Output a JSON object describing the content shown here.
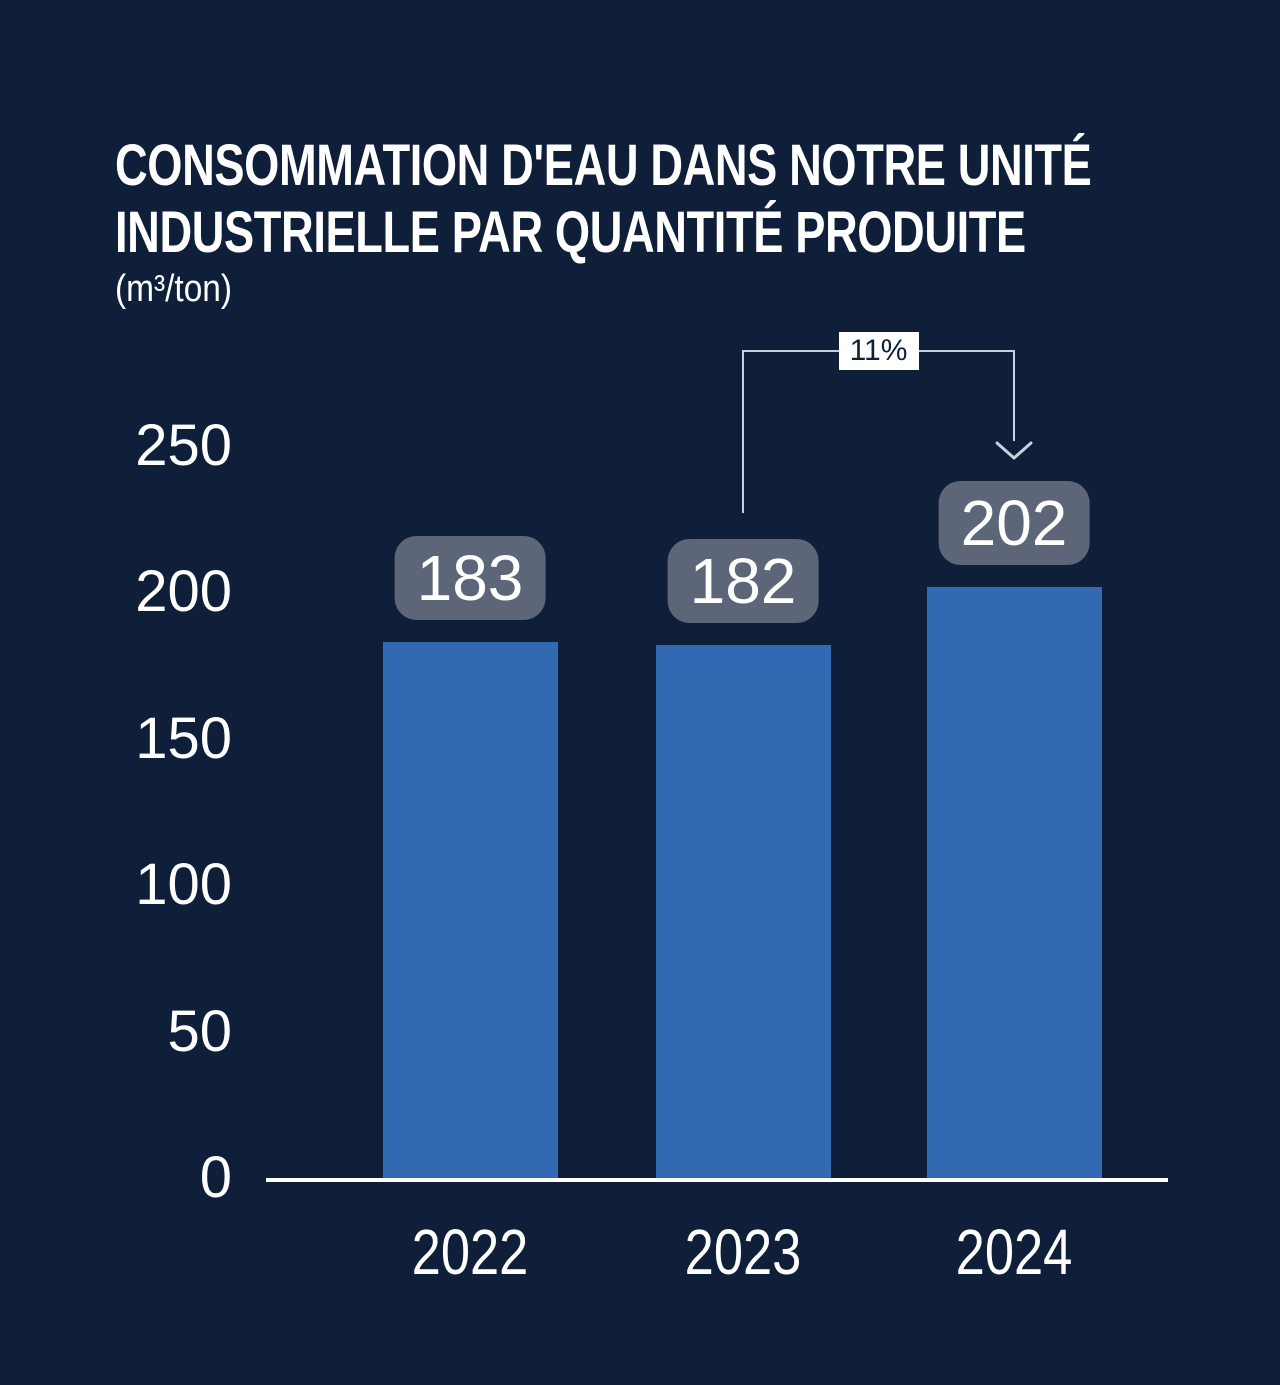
{
  "title": {
    "line1": "CONSOMMATION D'EAU DANS NOTRE UNITÉ",
    "line2": "INDUSTRIELLE PAR QUANTITÉ PRODUITE"
  },
  "unit_label": "(m³/ton)",
  "colors": {
    "background": "#0f1f3a",
    "bar": "#3169b3",
    "value_badge": "#5d6678",
    "axis": "#ffffff",
    "text": "#ffffff",
    "connector": "#c9d1de",
    "annotation_bg": "#ffffff",
    "annotation_text": "#0f1f3a"
  },
  "chart_data": {
    "type": "bar",
    "title": "CONSOMMATION D'EAU DANS NOTRE UNITÉ INDUSTRIELLE PAR QUANTITÉ PRODUITE",
    "ylabel": "(m³/ton)",
    "xlabel": "",
    "categories": [
      "2022",
      "2023",
      "2024"
    ],
    "values": [
      183,
      182,
      202
    ],
    "data_labels": [
      "183",
      "182",
      "202"
    ],
    "ylim": [
      0,
      250
    ],
    "yticks": [
      0,
      50,
      100,
      150,
      200,
      250
    ],
    "grid": false,
    "legend": false,
    "annotation": {
      "label": "11%",
      "from_category": "2023",
      "to_category": "2024"
    }
  }
}
